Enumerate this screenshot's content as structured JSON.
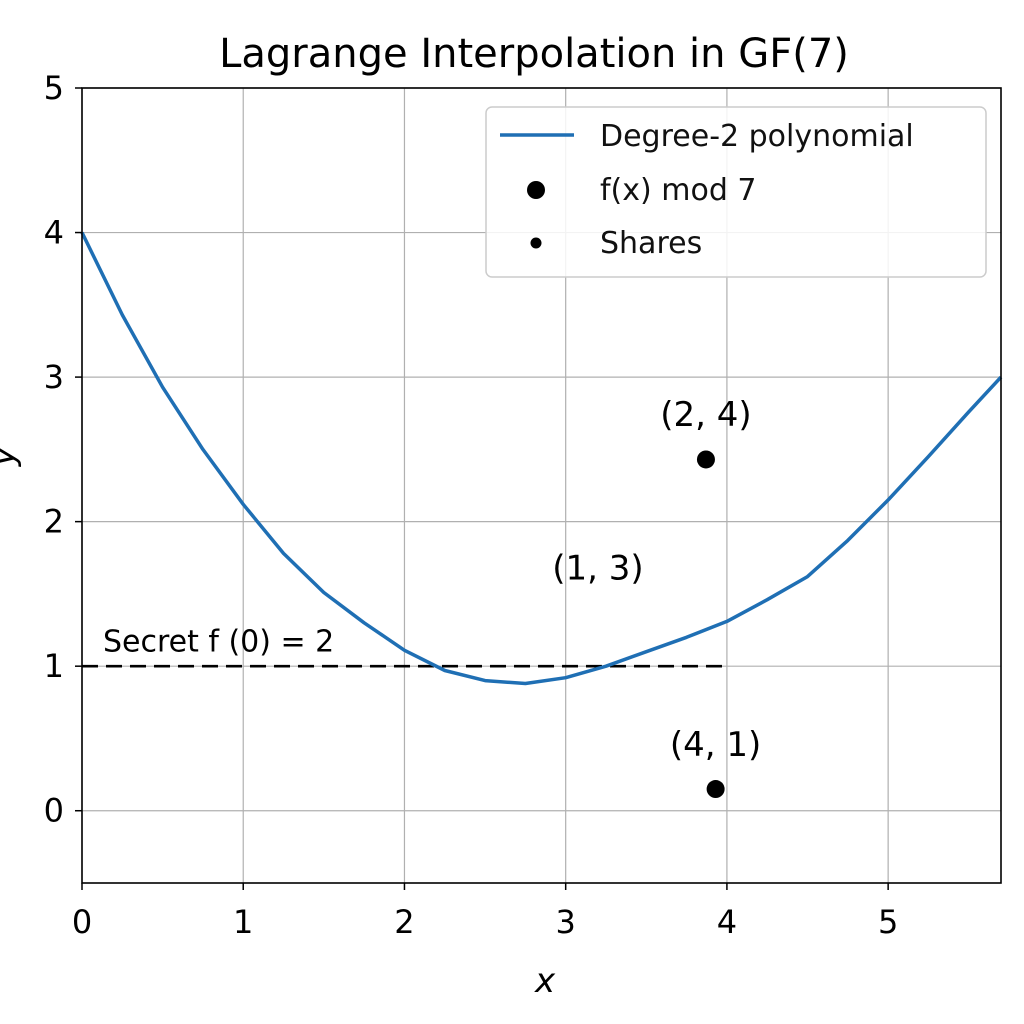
{
  "chart_data": {
    "type": "line",
    "title": "Lagrange Interpolation in GF(7)",
    "xlabel": "x",
    "ylabel": "y",
    "xlim": [
      0,
      5.7
    ],
    "ylim": [
      -0.5,
      5
    ],
    "xticks": [
      "0",
      "1",
      "2",
      "3",
      "4",
      "5"
    ],
    "yticks": [
      "0",
      "1",
      "2",
      "3",
      "4",
      "5"
    ],
    "grid": true,
    "legend_position": "top-right",
    "series": [
      {
        "name": "Degree-2 polynomial",
        "kind": "line",
        "color": "#1f6fb4",
        "x": [
          0,
          0.25,
          0.5,
          0.75,
          1.0,
          1.25,
          1.5,
          1.75,
          2.0,
          2.25,
          2.5,
          2.75,
          3.0,
          3.25,
          3.5,
          3.75,
          4.0,
          4.25,
          4.5,
          4.75,
          5.0,
          5.25,
          5.5,
          5.7
        ],
        "y": [
          4.0,
          3.43,
          2.93,
          2.5,
          2.12,
          1.78,
          1.51,
          1.3,
          1.11,
          0.97,
          0.9,
          0.88,
          0.92,
          1.0,
          1.1,
          1.2,
          1.31,
          1.46,
          1.62,
          1.87,
          2.15,
          2.45,
          2.76,
          3.0
        ]
      },
      {
        "name": "f(x) mod 7",
        "kind": "scatter",
        "color": "#000000",
        "x": [
          3.87,
          3.93
        ],
        "y": [
          2.43,
          0.15
        ]
      },
      {
        "name": "Shares",
        "kind": "scatter",
        "color": "#000000",
        "x": [],
        "y": []
      }
    ],
    "reference_line": {
      "y": 1.0,
      "x_from": 0,
      "x_to": 4.0,
      "style": "dashed",
      "color": "#000000"
    },
    "annotations": [
      {
        "text": "(2, 4)",
        "x": 3.87,
        "y": 2.66
      },
      {
        "text": "(1, 3)",
        "x": 3.2,
        "y": 1.6
      },
      {
        "text": "(4, 1)",
        "x": 3.93,
        "y": 0.38
      },
      {
        "text": "Secret f (0) = 2",
        "x": 0.13,
        "y": 1.1
      }
    ]
  }
}
